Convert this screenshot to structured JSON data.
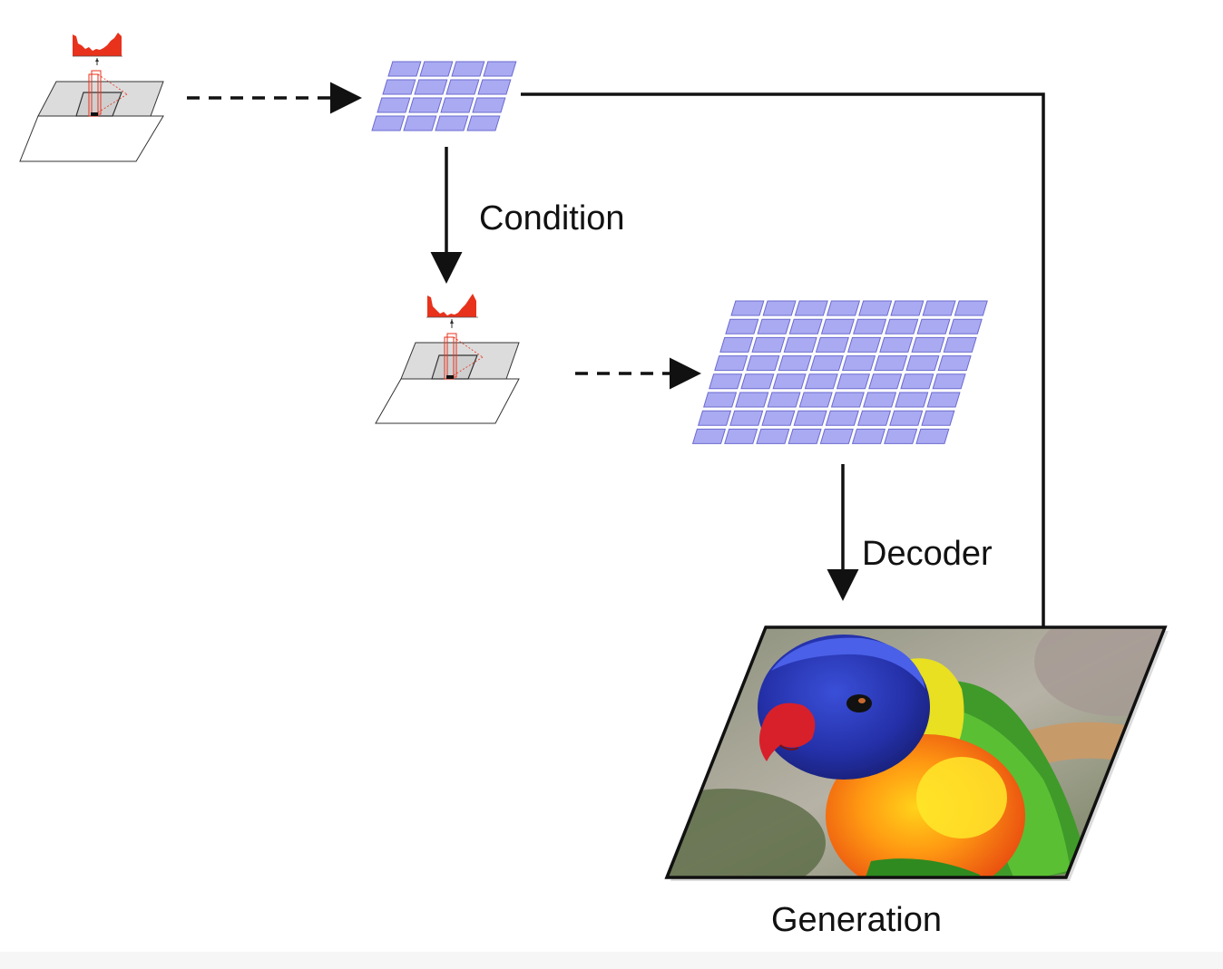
{
  "labels": {
    "condition": "Condition",
    "decoder": "Decoder",
    "generation": "Generation"
  },
  "colors": {
    "token_fill": "#aaaaf2",
    "token_stroke": "#6b6bd0",
    "histogram_red": "#e8321c",
    "arrow": "#111111",
    "plane_gray": "#dcdcdc"
  },
  "token_grids": {
    "coarse": {
      "rows": 4,
      "cols": 4
    },
    "fine": {
      "rows": 8,
      "cols": 8
    }
  },
  "icons": [
    "histogram-icon",
    "feature-plane-icon",
    "parrot-image"
  ]
}
